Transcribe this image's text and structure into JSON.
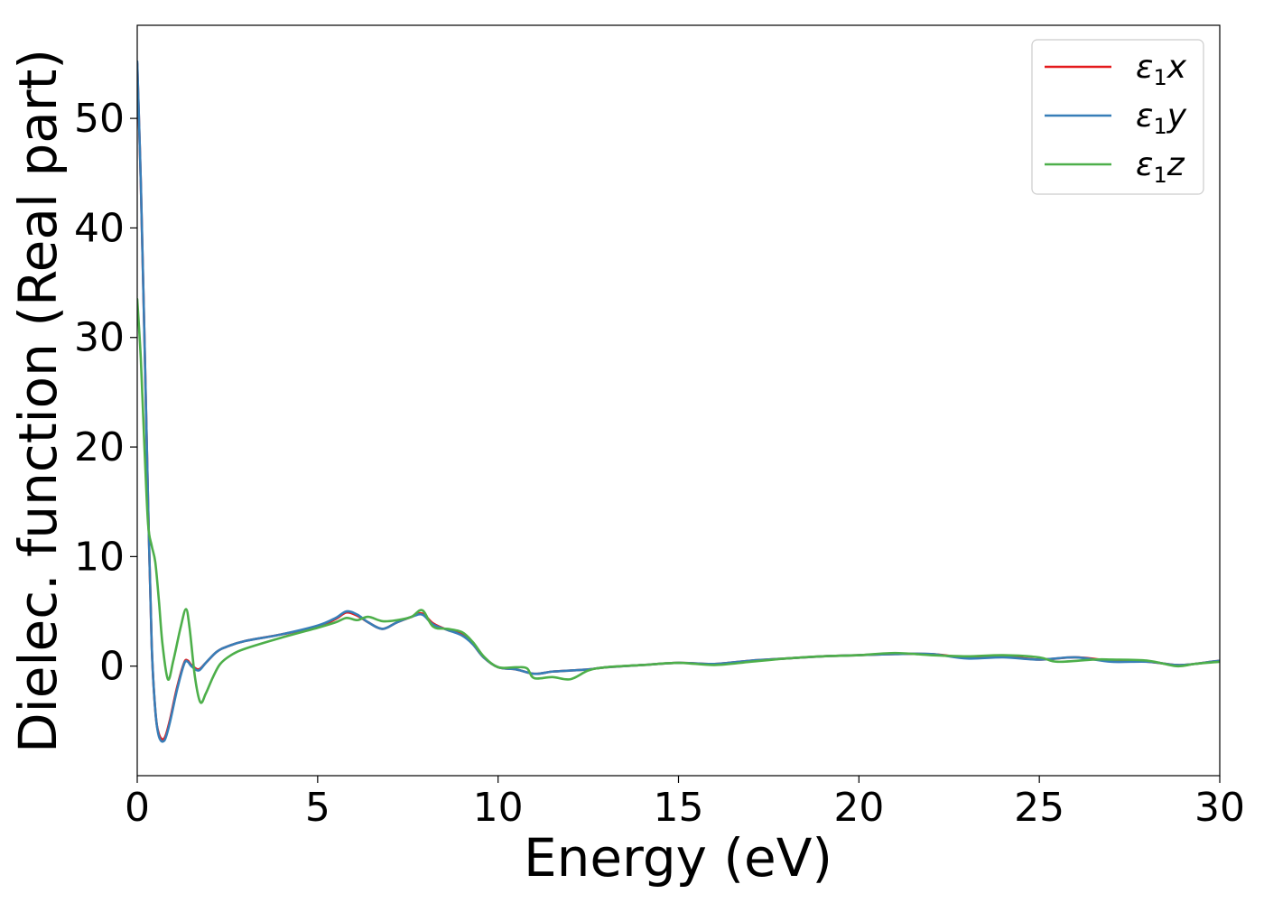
{
  "chart_data": {
    "type": "line",
    "xlabel": "Energy (eV)",
    "ylabel": "Dielec. function (Real part)",
    "xlim": [
      0,
      30
    ],
    "ylim": [
      -10,
      58.5
    ],
    "xticks": [
      0,
      5,
      10,
      15,
      20,
      25,
      30
    ],
    "yticks": [
      0,
      10,
      20,
      30,
      40,
      50
    ],
    "grid": false,
    "legend_position": "top-right",
    "series": [
      {
        "name": "ε1x",
        "legend_base": "ε",
        "legend_sub": "1",
        "legend_var": "x",
        "color": "#e41a1c",
        "points": [
          [
            0,
            55
          ],
          [
            0.1,
            44
          ],
          [
            0.2,
            30
          ],
          [
            0.3,
            15
          ],
          [
            0.4,
            2
          ],
          [
            0.5,
            -4
          ],
          [
            0.6,
            -6.2
          ],
          [
            0.75,
            -6.6
          ],
          [
            0.9,
            -5
          ],
          [
            1.1,
            -2
          ],
          [
            1.3,
            0.3
          ],
          [
            1.4,
            0.5
          ],
          [
            1.5,
            0.1
          ],
          [
            1.7,
            -0.3
          ],
          [
            1.9,
            0.3
          ],
          [
            2.2,
            1.3
          ],
          [
            2.5,
            1.8
          ],
          [
            3,
            2.3
          ],
          [
            4,
            2.9
          ],
          [
            5,
            3.6
          ],
          [
            5.5,
            4.3
          ],
          [
            5.8,
            4.9
          ],
          [
            6.1,
            4.6
          ],
          [
            6.4,
            4.0
          ],
          [
            6.8,
            3.4
          ],
          [
            7.2,
            4.0
          ],
          [
            7.6,
            4.5
          ],
          [
            7.9,
            4.8
          ],
          [
            8.2,
            3.9
          ],
          [
            8.6,
            3.3
          ],
          [
            9.0,
            2.9
          ],
          [
            9.3,
            2.0
          ],
          [
            9.6,
            0.8
          ],
          [
            10,
            -0.1
          ],
          [
            10.5,
            -0.3
          ],
          [
            11,
            -0.7
          ],
          [
            11.5,
            -0.5
          ],
          [
            12,
            -0.4
          ],
          [
            12.5,
            -0.3
          ],
          [
            13,
            -0.1
          ],
          [
            14,
            0.1
          ],
          [
            15,
            0.3
          ],
          [
            16,
            0.2
          ],
          [
            17,
            0.5
          ],
          [
            18,
            0.7
          ],
          [
            19,
            0.9
          ],
          [
            20,
            1.0
          ],
          [
            21,
            1.1
          ],
          [
            22,
            1.1
          ],
          [
            23,
            0.8
          ],
          [
            24,
            0.9
          ],
          [
            25,
            0.6
          ],
          [
            26,
            0.8
          ],
          [
            27,
            0.5
          ],
          [
            28,
            0.4
          ],
          [
            28.8,
            0.1
          ],
          [
            29.3,
            0.2
          ],
          [
            30,
            0.5
          ]
        ]
      },
      {
        "name": "ε1y",
        "legend_base": "ε",
        "legend_sub": "1",
        "legend_var": "y",
        "color": "#377eb8",
        "points": [
          [
            0,
            55.2
          ],
          [
            0.1,
            44
          ],
          [
            0.2,
            30
          ],
          [
            0.3,
            15
          ],
          [
            0.4,
            2
          ],
          [
            0.5,
            -4
          ],
          [
            0.6,
            -6.4
          ],
          [
            0.75,
            -6.8
          ],
          [
            0.9,
            -5.2
          ],
          [
            1.1,
            -2.2
          ],
          [
            1.3,
            0.2
          ],
          [
            1.4,
            0.4
          ],
          [
            1.5,
            0.0
          ],
          [
            1.7,
            -0.4
          ],
          [
            1.9,
            0.3
          ],
          [
            2.2,
            1.3
          ],
          [
            2.5,
            1.8
          ],
          [
            3,
            2.3
          ],
          [
            4,
            2.9
          ],
          [
            5,
            3.7
          ],
          [
            5.5,
            4.4
          ],
          [
            5.8,
            5.0
          ],
          [
            6.1,
            4.7
          ],
          [
            6.4,
            4.0
          ],
          [
            6.8,
            3.4
          ],
          [
            7.2,
            4.0
          ],
          [
            7.6,
            4.5
          ],
          [
            7.9,
            4.7
          ],
          [
            8.2,
            3.8
          ],
          [
            8.6,
            3.3
          ],
          [
            9.0,
            2.8
          ],
          [
            9.3,
            2.0
          ],
          [
            9.6,
            0.8
          ],
          [
            10,
            -0.1
          ],
          [
            10.5,
            -0.3
          ],
          [
            11,
            -0.7
          ],
          [
            11.5,
            -0.5
          ],
          [
            12,
            -0.4
          ],
          [
            12.5,
            -0.3
          ],
          [
            13,
            -0.1
          ],
          [
            14,
            0.1
          ],
          [
            15,
            0.3
          ],
          [
            16,
            0.2
          ],
          [
            17,
            0.5
          ],
          [
            18,
            0.7
          ],
          [
            19,
            0.9
          ],
          [
            20,
            1.0
          ],
          [
            21,
            1.1
          ],
          [
            22,
            1.1
          ],
          [
            23,
            0.7
          ],
          [
            24,
            0.8
          ],
          [
            25,
            0.6
          ],
          [
            26,
            0.8
          ],
          [
            27,
            0.4
          ],
          [
            28,
            0.4
          ],
          [
            28.8,
            0.1
          ],
          [
            29.3,
            0.2
          ],
          [
            30,
            0.5
          ]
        ]
      },
      {
        "name": "ε1z",
        "legend_base": "ε",
        "legend_sub": "1",
        "legend_var": "z",
        "color": "#4daf4a",
        "points": [
          [
            0,
            33.5
          ],
          [
            0.1,
            28
          ],
          [
            0.2,
            20
          ],
          [
            0.3,
            13
          ],
          [
            0.4,
            11
          ],
          [
            0.5,
            9.5
          ],
          [
            0.6,
            6
          ],
          [
            0.7,
            2
          ],
          [
            0.85,
            -1.2
          ],
          [
            1.0,
            0.5
          ],
          [
            1.2,
            3.5
          ],
          [
            1.35,
            5.2
          ],
          [
            1.45,
            3.5
          ],
          [
            1.6,
            -1
          ],
          [
            1.75,
            -3.3
          ],
          [
            1.9,
            -2.5
          ],
          [
            2.1,
            -1
          ],
          [
            2.3,
            0.2
          ],
          [
            2.6,
            1.0
          ],
          [
            3,
            1.6
          ],
          [
            4,
            2.6
          ],
          [
            5,
            3.5
          ],
          [
            5.5,
            4.0
          ],
          [
            5.8,
            4.4
          ],
          [
            6.1,
            4.2
          ],
          [
            6.4,
            4.5
          ],
          [
            6.8,
            4.1
          ],
          [
            7.2,
            4.2
          ],
          [
            7.6,
            4.5
          ],
          [
            7.9,
            5.1
          ],
          [
            8.2,
            3.6
          ],
          [
            8.6,
            3.4
          ],
          [
            9.0,
            3.1
          ],
          [
            9.3,
            2.2
          ],
          [
            9.6,
            0.9
          ],
          [
            10,
            -0.1
          ],
          [
            10.5,
            -0.1
          ],
          [
            10.8,
            -0.2
          ],
          [
            11,
            -1.1
          ],
          [
            11.5,
            -1.0
          ],
          [
            12,
            -1.2
          ],
          [
            12.5,
            -0.4
          ],
          [
            13,
            -0.1
          ],
          [
            14,
            0.1
          ],
          [
            15,
            0.3
          ],
          [
            16,
            0.1
          ],
          [
            17,
            0.4
          ],
          [
            18,
            0.7
          ],
          [
            19,
            0.9
          ],
          [
            20,
            1.0
          ],
          [
            21,
            1.2
          ],
          [
            22,
            1.0
          ],
          [
            23,
            0.9
          ],
          [
            24,
            1.0
          ],
          [
            25,
            0.8
          ],
          [
            25.5,
            0.4
          ],
          [
            26.5,
            0.6
          ],
          [
            27,
            0.6
          ],
          [
            28,
            0.5
          ],
          [
            28.8,
            0.0
          ],
          [
            29.3,
            0.2
          ],
          [
            30,
            0.4
          ]
        ]
      }
    ]
  }
}
